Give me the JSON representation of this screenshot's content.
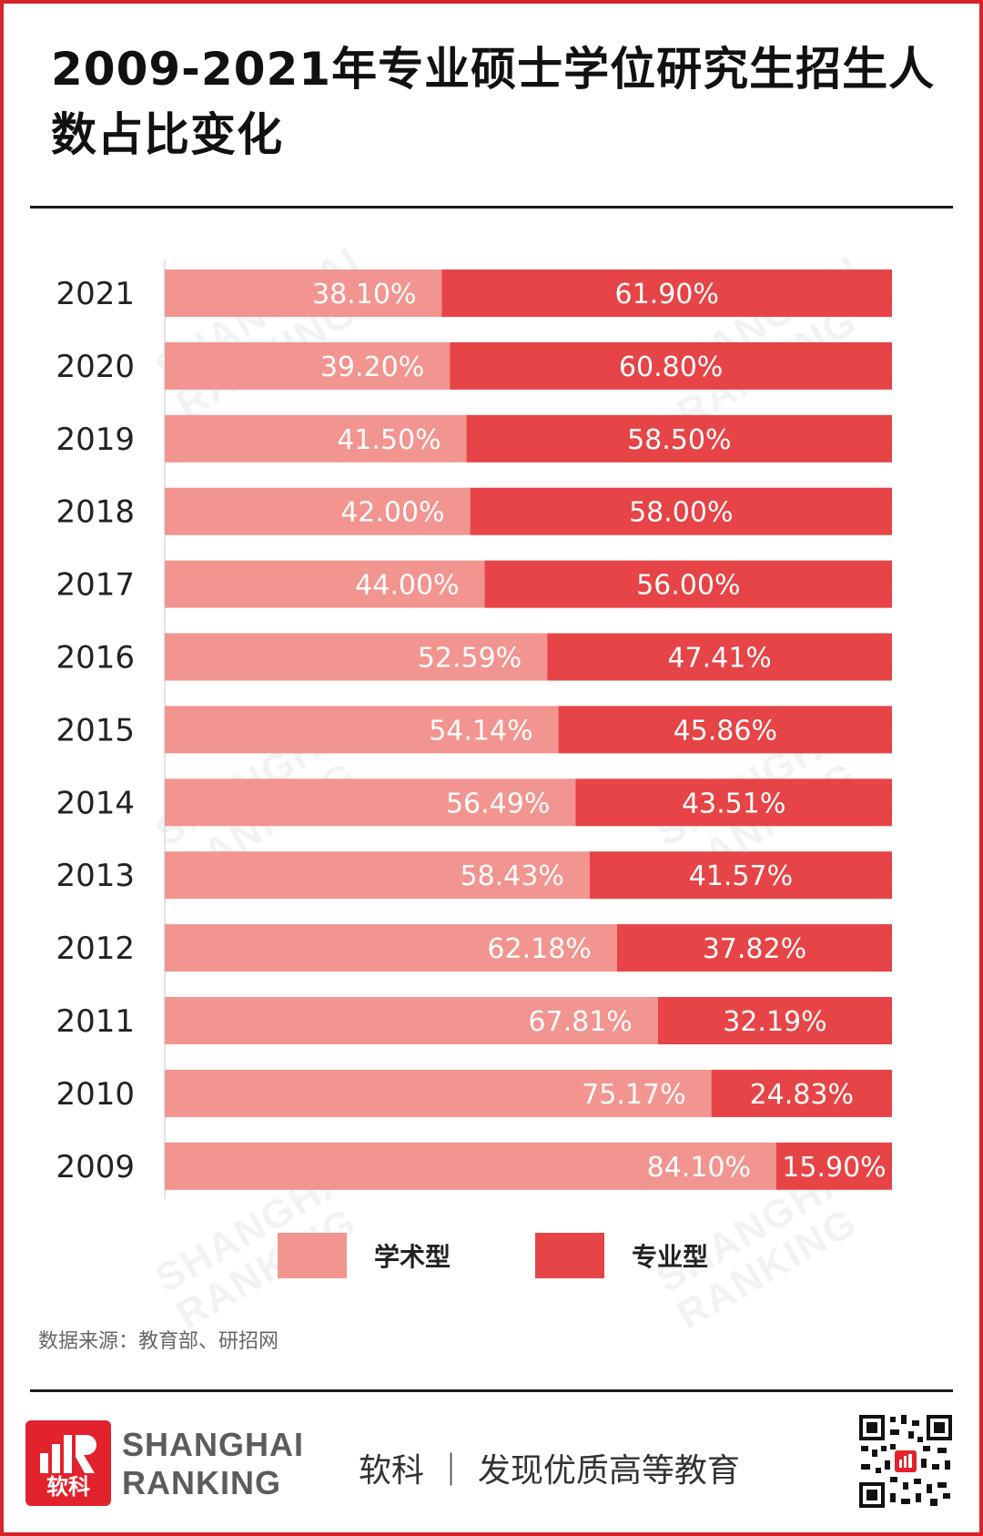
{
  "title": "2009-2021年专业硕士学位研究生招生人数占比变化",
  "chart_data": {
    "type": "bar",
    "orientation": "horizontal",
    "stacked": true,
    "percent_stacked": true,
    "categories": [
      "2021",
      "2020",
      "2019",
      "2018",
      "2017",
      "2016",
      "2015",
      "2014",
      "2013",
      "2012",
      "2011",
      "2010",
      "2009"
    ],
    "series": [
      {
        "name": "学术型",
        "color": "#f2948f",
        "values": [
          38.1,
          39.2,
          41.5,
          42.0,
          44.0,
          52.59,
          54.14,
          56.49,
          58.43,
          62.18,
          67.81,
          75.17,
          84.1
        ],
        "labels": [
          "38.10%",
          "39.20%",
          "41.50%",
          "42.00%",
          "44.00%",
          "52.59%",
          "54.14%",
          "56.49%",
          "58.43%",
          "62.18%",
          "67.81%",
          "75.17%",
          "84.10%"
        ]
      },
      {
        "name": "专业型",
        "color": "#e64446",
        "values": [
          61.9,
          60.8,
          58.5,
          58.0,
          56.0,
          47.41,
          45.86,
          43.51,
          41.57,
          37.82,
          32.19,
          24.83,
          15.9
        ],
        "labels": [
          "61.90%",
          "60.80%",
          "58.50%",
          "58.00%",
          "56.00%",
          "47.41%",
          "45.86%",
          "43.51%",
          "41.57%",
          "37.82%",
          "32.19%",
          "24.83%",
          "15.90%"
        ]
      }
    ],
    "xlim": [
      0,
      100
    ],
    "grid": false,
    "legend_position": "bottom"
  },
  "legend": {
    "academic_label": "学术型",
    "professional_label": "专业型"
  },
  "source": "数据来源：教育部、研招网",
  "footer": {
    "logo_cn": "软科",
    "brand_line1": "SHANGHAI",
    "brand_line2": "RANKING",
    "slogan": "软科 ｜ 发现优质高等教育"
  },
  "watermark": {
    "line1": "SHANGHAI",
    "line2": "RANKING"
  }
}
